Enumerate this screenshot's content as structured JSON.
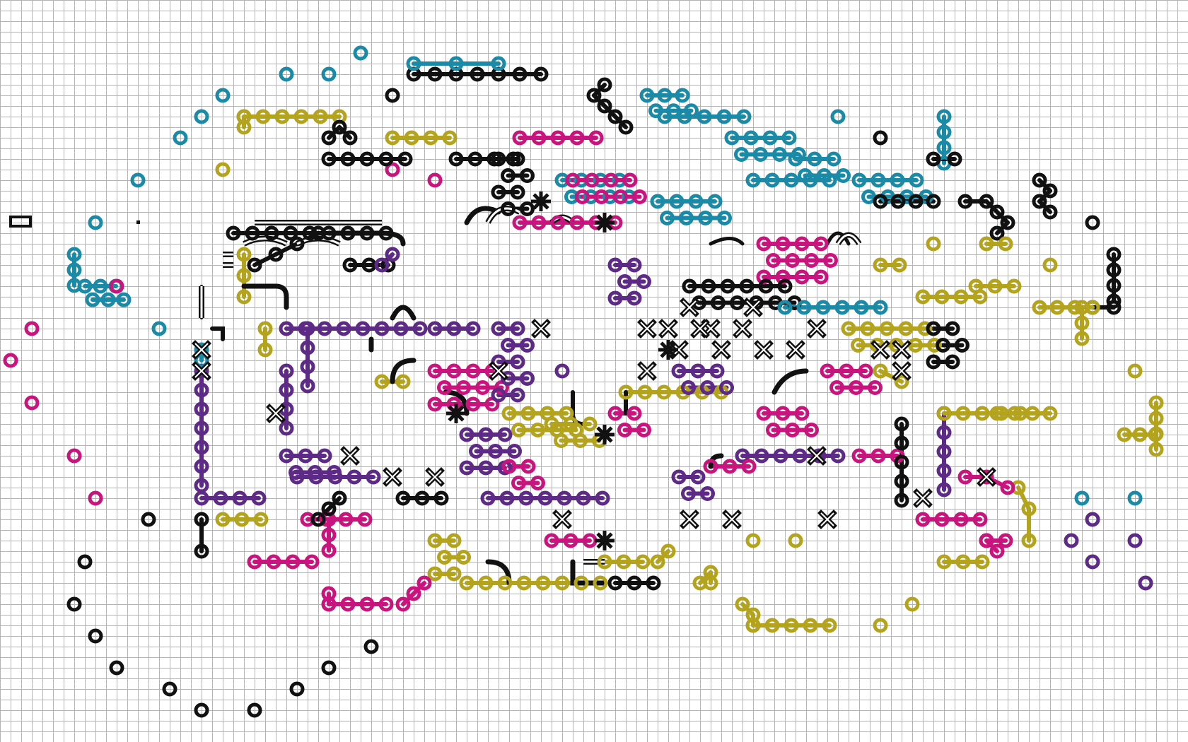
{
  "artwork": {
    "background": "#ffffff",
    "grid_color": "#b4b4b4",
    "grid": true,
    "palette": {
      "black": "#111111",
      "teal": "#1b8aa6",
      "magenta": "#c8157e",
      "purple": "#5d2a86",
      "olive": "#b3a31d"
    }
  }
}
